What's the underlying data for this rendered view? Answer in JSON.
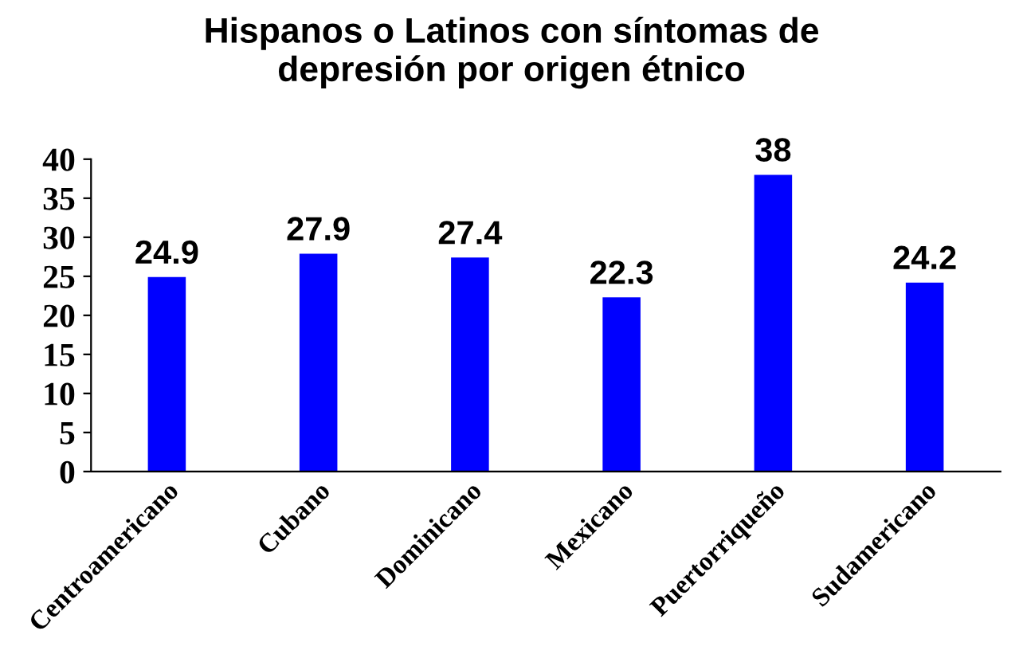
{
  "chart_data": {
    "type": "bar",
    "title": "Hispanos o Latinos con síntomas de\ndepresión por origen étnico",
    "categories": [
      "Centroamericano",
      "Cubano",
      "Dominicano",
      "Mexicano",
      "Puertorriqueño",
      "Sudamericano"
    ],
    "values": [
      24.9,
      27.9,
      27.4,
      22.3,
      38,
      24.2
    ],
    "color": "#0000ff",
    "ylim": [
      0,
      40
    ],
    "yticks": [
      0,
      5,
      10,
      15,
      20,
      25,
      30,
      35,
      40
    ],
    "grid": false,
    "data_labels": true
  }
}
